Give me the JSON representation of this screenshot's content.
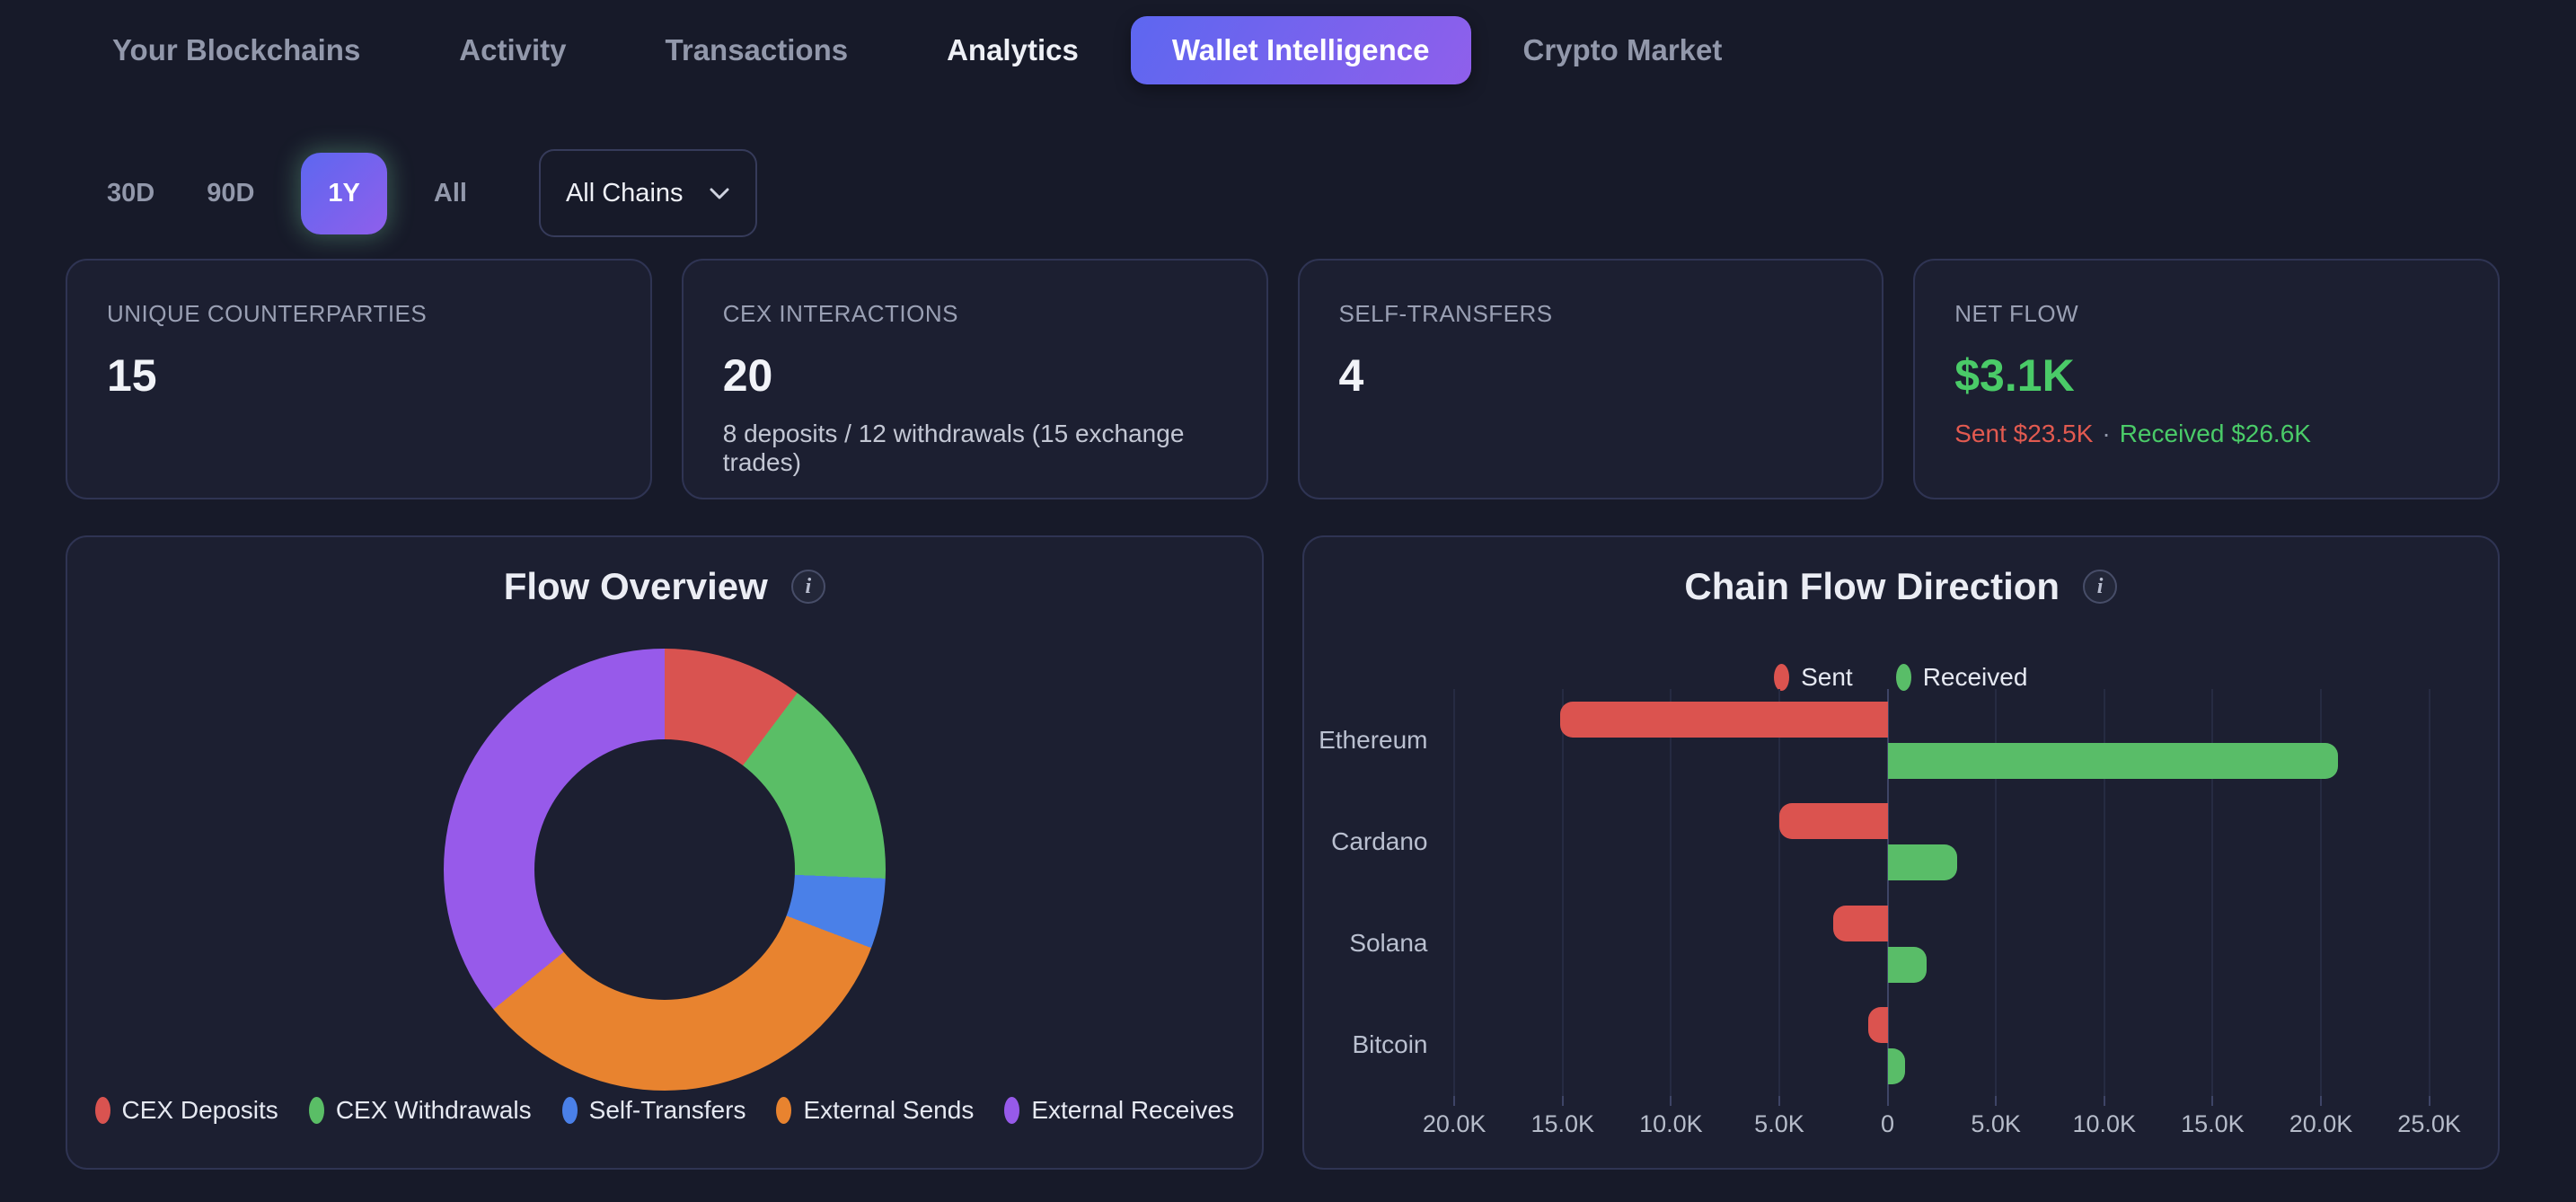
{
  "palette": {
    "accent_gradient_start": "#5d67f0",
    "accent_gradient_end": "#8f5feb",
    "positive_green": "#4acb68",
    "negative_red": "#e25a50"
  },
  "nav": {
    "tabs": [
      {
        "label": "Your Blockchains",
        "state": "default"
      },
      {
        "label": "Activity",
        "state": "default"
      },
      {
        "label": "Transactions",
        "state": "default"
      },
      {
        "label": "Analytics",
        "state": "highlighted"
      },
      {
        "label": "Wallet Intelligence",
        "state": "active-pill"
      },
      {
        "label": "Crypto Market",
        "state": "default"
      }
    ]
  },
  "filters": {
    "ranges": [
      "30D",
      "90D",
      "1Y",
      "All"
    ],
    "active_range": "1Y",
    "chain_select": {
      "value": "All Chains"
    }
  },
  "stats": [
    {
      "label": "UNIQUE COUNTERPARTIES",
      "value": "15"
    },
    {
      "label": "CEX INTERACTIONS",
      "value": "20",
      "subtitle": "8 deposits / 12 withdrawals (15 exchange trades)"
    },
    {
      "label": "SELF-TRANSFERS",
      "value": "4"
    },
    {
      "label": "NET FLOW",
      "value": "$3.1K",
      "sent": "Sent $23.5K",
      "separator": "·",
      "received": "Received $26.6K"
    }
  ],
  "chart_data": [
    {
      "type": "pie",
      "subtype": "donut",
      "title": "Flow Overview",
      "start_angle_deg": 0,
      "clockwise": true,
      "hole_ratio": 0.59,
      "legend_position": "bottom",
      "segments": [
        {
          "label": "CEX Deposits",
          "value": 8,
          "color": "#d95350"
        },
        {
          "label": "CEX Withdrawals",
          "value": 12,
          "color": "#5abe66"
        },
        {
          "label": "Self-Transfers",
          "value": 4,
          "color": "#4a80e8"
        },
        {
          "label": "External Sends",
          "value": 26,
          "color": "#e8832f"
        },
        {
          "label": "External Receives",
          "value": 28,
          "color": "#975aea"
        }
      ]
    },
    {
      "type": "bar",
      "orientation": "horizontal",
      "title": "Chain Flow Direction",
      "categories": [
        "Ethereum",
        "Cardano",
        "Solana",
        "Bitcoin"
      ],
      "series": [
        {
          "name": "Sent",
          "color": "#db534f",
          "direction": "left",
          "values": [
            15100,
            5000,
            2500,
            900
          ]
        },
        {
          "name": "Received",
          "color": "#59bd68",
          "direction": "right",
          "values": [
            20800,
            3200,
            1800,
            800
          ]
        }
      ],
      "x_tick_values": [
        -20000,
        -15000,
        -10000,
        -5000,
        0,
        5000,
        10000,
        15000,
        20000,
        25000
      ],
      "x_tick_labels": [
        "20.0K",
        "15.0K",
        "10.0K",
        "5.0K",
        "0",
        "5.0K",
        "10.0K",
        "15.0K",
        "20.0K",
        "25.0K"
      ],
      "xlim": [
        -20400,
        26800
      ],
      "grid": true,
      "legend_position": "top"
    }
  ]
}
